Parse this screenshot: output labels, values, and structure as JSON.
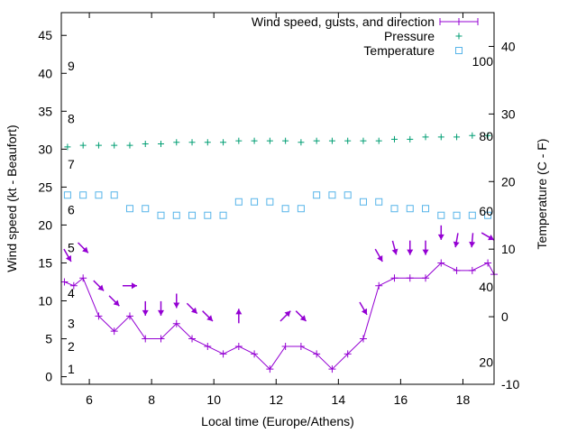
{
  "chart_data": {
    "type": "line",
    "xlabel": "Local time (Europe/Athens)",
    "ylabel": "Wind speed (kt - Beaufort)",
    "y2label": "Temperature (C - F)",
    "xlim": [
      5.1,
      19.0
    ],
    "ylim": [
      -1,
      48
    ],
    "y2lim": [
      -10,
      45
    ],
    "x_ticks": [
      6,
      8,
      10,
      12,
      14,
      16,
      18
    ],
    "y_ticks": [
      0,
      5,
      10,
      15,
      20,
      25,
      30,
      35,
      40,
      45
    ],
    "y2_ticks": [
      -10,
      0,
      10,
      20,
      30,
      40
    ],
    "beaufort_labels": [
      {
        "label": "1",
        "kt": 1
      },
      {
        "label": "2",
        "kt": 4
      },
      {
        "label": "3",
        "kt": 7
      },
      {
        "label": "4",
        "kt": 11
      },
      {
        "label": "5",
        "kt": 17
      },
      {
        "label": "6",
        "kt": 22
      },
      {
        "label": "7",
        "kt": 28
      },
      {
        "label": "8",
        "kt": 34
      },
      {
        "label": "9",
        "kt": 41
      }
    ],
    "fahrenheit_labels": [
      {
        "label": "20",
        "c": -6.7
      },
      {
        "label": "40",
        "c": 4.4
      },
      {
        "label": "60",
        "c": 15.6
      },
      {
        "label": "80",
        "c": 26.7
      },
      {
        "label": "100",
        "c": 37.8
      }
    ],
    "legend_position": "top-right",
    "series": [
      {
        "name": "Wind speed, gusts, and direction",
        "axis": "left",
        "color": "#9400d3",
        "x": [
          5.2,
          5.5,
          5.8,
          6.3,
          6.8,
          7.3,
          7.8,
          8.3,
          8.8,
          9.3,
          9.8,
          10.3,
          10.8,
          11.3,
          11.8,
          12.3,
          12.8,
          13.3,
          13.8,
          14.3,
          14.8,
          15.3,
          15.8,
          16.3,
          16.8,
          17.3,
          17.8,
          18.3,
          18.8,
          19.0
        ],
        "values": [
          12.5,
          12,
          13,
          8,
          6,
          8,
          5,
          5,
          7,
          5,
          4,
          3,
          4,
          3,
          1,
          4,
          4,
          3,
          1,
          3,
          5,
          12,
          13,
          13,
          13,
          15,
          14,
          14,
          15,
          13.5
        ]
      },
      {
        "name": "Pressure",
        "axis": "left",
        "color": "#009e73",
        "x": [
          5.3,
          5.8,
          6.3,
          6.8,
          7.3,
          7.8,
          8.3,
          8.8,
          9.3,
          9.8,
          10.3,
          10.8,
          11.3,
          11.8,
          12.3,
          12.8,
          13.3,
          13.8,
          14.3,
          14.8,
          15.3,
          15.8,
          16.3,
          16.8,
          17.3,
          17.8,
          18.3,
          18.8
        ],
        "values": [
          30.3,
          30.5,
          30.5,
          30.5,
          30.5,
          30.7,
          30.7,
          30.9,
          30.9,
          30.9,
          30.9,
          31.1,
          31.1,
          31.1,
          31.1,
          30.9,
          31.1,
          31.1,
          31.1,
          31.1,
          31.1,
          31.3,
          31.3,
          31.6,
          31.6,
          31.6,
          31.8,
          31.8
        ]
      },
      {
        "name": "Temperature",
        "axis": "right",
        "color": "#56b4e9",
        "x": [
          5.3,
          5.8,
          6.3,
          6.8,
          7.3,
          7.8,
          8.3,
          8.8,
          9.3,
          9.8,
          10.3,
          10.8,
          11.3,
          11.8,
          12.3,
          12.8,
          13.3,
          13.8,
          14.3,
          14.8,
          15.3,
          15.8,
          16.3,
          16.8,
          17.3,
          17.8,
          18.3,
          18.8
        ],
        "values": [
          18,
          18,
          18,
          18,
          16,
          16,
          15,
          15,
          15,
          15,
          15,
          17,
          17,
          17,
          16,
          16,
          18,
          18,
          18,
          17,
          17,
          16,
          16,
          16,
          15,
          15,
          15,
          15
        ]
      }
    ],
    "wind_direction": {
      "name": "Wind direction",
      "color": "#9400d3",
      "x": [
        5.3,
        5.8,
        6.3,
        6.8,
        7.3,
        7.8,
        8.3,
        8.8,
        9.3,
        9.8,
        10.8,
        12.3,
        12.8,
        14.8,
        15.3,
        15.8,
        16.3,
        16.8,
        17.3,
        17.8,
        18.3,
        18.8
      ],
      "y": [
        16,
        17,
        12,
        10,
        12,
        9,
        9,
        10,
        9,
        8,
        8,
        8,
        8,
        9,
        16,
        17,
        17,
        17,
        19,
        18,
        18,
        18.5
      ],
      "direction_from_deg": [
        330,
        315,
        315,
        315,
        270,
        0,
        0,
        0,
        315,
        315,
        180,
        225,
        315,
        330,
        330,
        345,
        0,
        0,
        0,
        10,
        5,
        300
      ]
    }
  }
}
